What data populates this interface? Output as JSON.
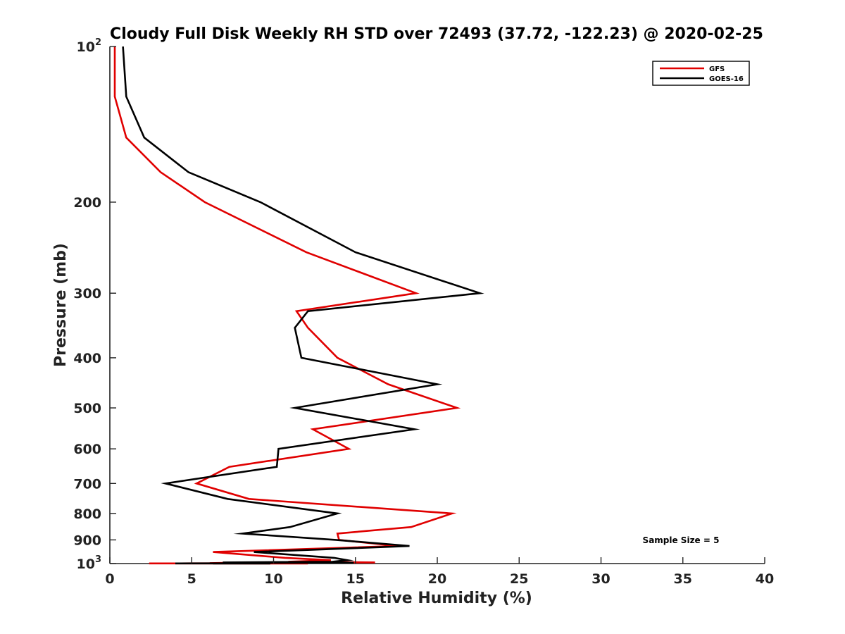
{
  "chart_data": {
    "type": "line",
    "title": "Cloudy Full Disk Weekly RH STD over 72493 (37.72, -122.23) @ 2020-02-25",
    "xlabel": "Relative Humidity (%)",
    "ylabel": "Pressure (mb)",
    "xlim": [
      0,
      40
    ],
    "ylim": [
      100,
      1000
    ],
    "y_scale": "log",
    "y_reversed": true,
    "grid": false,
    "legend_position": "top-right",
    "x_ticks": [
      "0",
      "5",
      "10",
      "15",
      "20",
      "25",
      "30",
      "35",
      "40"
    ],
    "y_ticks": [
      {
        "value": 100,
        "base": "10",
        "exp": "2"
      },
      {
        "value": 200,
        "label": "200"
      },
      {
        "value": 300,
        "label": "300"
      },
      {
        "value": 400,
        "label": "400"
      },
      {
        "value": 500,
        "label": "500"
      },
      {
        "value": 600,
        "label": "600"
      },
      {
        "value": 700,
        "label": "700"
      },
      {
        "value": 800,
        "label": "800"
      },
      {
        "value": 900,
        "label": "900"
      },
      {
        "value": 1000,
        "base": "10",
        "exp": "3"
      }
    ],
    "annotation": "Sample Size = 5",
    "series": [
      {
        "name": "GFS",
        "color": "#e00000",
        "points": [
          [
            0.3,
            100
          ],
          [
            0.3,
            125
          ],
          [
            1.0,
            150
          ],
          [
            3.1,
            175
          ],
          [
            5.8,
            200
          ],
          [
            12.0,
            250
          ],
          [
            18.7,
            300
          ],
          [
            11.4,
            325
          ],
          [
            12.1,
            350
          ],
          [
            13.9,
            400
          ],
          [
            17.0,
            450
          ],
          [
            21.2,
            500
          ],
          [
            12.4,
            550
          ],
          [
            14.6,
            600
          ],
          [
            7.3,
            650
          ],
          [
            5.3,
            700
          ],
          [
            8.5,
            750
          ],
          [
            20.9,
            800
          ],
          [
            18.4,
            850
          ],
          [
            13.9,
            875
          ],
          [
            14.0,
            900
          ],
          [
            17.6,
            925
          ],
          [
            6.3,
            950
          ],
          [
            10.7,
            975
          ],
          [
            13.5,
            985
          ],
          [
            10.9,
            992
          ],
          [
            16.2,
            995
          ],
          [
            8.4,
            996
          ],
          [
            7.0,
            997
          ],
          [
            6.1,
            998
          ],
          [
            7.1,
            998.5
          ],
          [
            5.0,
            999
          ],
          [
            5.0,
            999.2
          ],
          [
            3.5,
            999.4
          ],
          [
            2.4,
            999.5
          ],
          [
            8.8,
            999.6
          ],
          [
            12.1,
            999.7
          ],
          [
            7.8,
            999.8
          ],
          [
            8.9,
            999.85
          ],
          [
            9.5,
            999.9
          ],
          [
            10.8,
            1000
          ]
        ]
      },
      {
        "name": "GOES-16",
        "color": "#000000",
        "points": [
          [
            0.8,
            100
          ],
          [
            1.0,
            125
          ],
          [
            2.1,
            150
          ],
          [
            4.8,
            175
          ],
          [
            9.2,
            200
          ],
          [
            15.0,
            250
          ],
          [
            22.6,
            300
          ],
          [
            12.1,
            325
          ],
          [
            11.3,
            350
          ],
          [
            11.7,
            400
          ],
          [
            20.0,
            450
          ],
          [
            11.3,
            500
          ],
          [
            18.6,
            550
          ],
          [
            10.3,
            600
          ],
          [
            10.2,
            650
          ],
          [
            3.4,
            700
          ],
          [
            7.2,
            750
          ],
          [
            13.9,
            800
          ],
          [
            11.0,
            850
          ],
          [
            8.1,
            875
          ],
          [
            13.8,
            900
          ],
          [
            18.3,
            925
          ],
          [
            8.8,
            950
          ],
          [
            13.7,
            975
          ],
          [
            14.5,
            985
          ],
          [
            13.6,
            992
          ],
          [
            6.9,
            995
          ],
          [
            14.9,
            996
          ],
          [
            8.5,
            997
          ],
          [
            8.9,
            998
          ],
          [
            7.7,
            998.5
          ],
          [
            8.8,
            999
          ],
          [
            6.5,
            999.2
          ],
          [
            4.0,
            999.4
          ],
          [
            7.1,
            999.5
          ],
          [
            9.8,
            999.6
          ],
          [
            7.5,
            999.7
          ],
          [
            7.8,
            999.8
          ],
          [
            6.3,
            999.85
          ],
          [
            7.9,
            999.9
          ]
        ]
      }
    ]
  }
}
